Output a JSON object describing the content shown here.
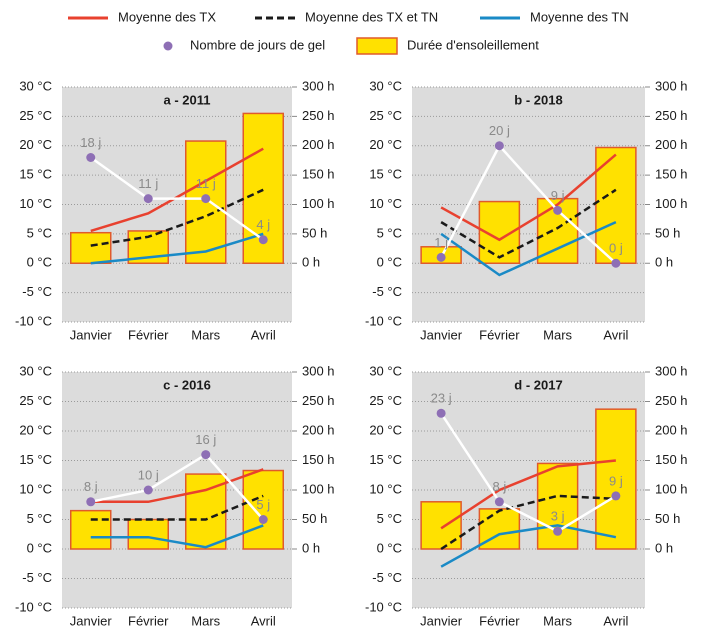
{
  "chart_data": [
    {
      "type": "combo",
      "title": "a - 2011",
      "categories": [
        "Janvier",
        "Février",
        "Mars",
        "Avril"
      ],
      "ylim": [
        -10,
        30
      ],
      "yticks": [
        {
          "value": -10,
          "label": "-10 °C"
        },
        {
          "value": -5,
          "label": "-5 °C"
        },
        {
          "value": 0,
          "label": "0 °C"
        },
        {
          "value": 5,
          "label": "5 °C"
        },
        {
          "value": 10,
          "label": "10 °C"
        },
        {
          "value": 15,
          "label": "15 °C"
        },
        {
          "value": 20,
          "label": "20 °C"
        },
        {
          "value": 25,
          "label": "25 °C"
        },
        {
          "value": 30,
          "label": "30 °C"
        }
      ],
      "y2lim": [
        -100,
        300
      ],
      "y2ticks": [
        {
          "value": 0,
          "label": "0 h"
        },
        {
          "value": 50,
          "label": "50 h"
        },
        {
          "value": 100,
          "label": "100 h"
        },
        {
          "value": 150,
          "label": "150 h"
        },
        {
          "value": 200,
          "label": "200 h"
        },
        {
          "value": 250,
          "label": "250 h"
        },
        {
          "value": 300,
          "label": "300 h"
        }
      ],
      "grid": true,
      "series": [
        {
          "name": "Moyenne des TX",
          "style": "line",
          "color": "#e8412f",
          "values": [
            5.5,
            8.5,
            14,
            19.5
          ]
        },
        {
          "name": "Moyenne des TX et TN",
          "style": "dashed",
          "color": "#1a1a1a",
          "values": [
            3,
            4.5,
            8,
            12.5
          ]
        },
        {
          "name": "Moyenne des TN",
          "style": "line",
          "color": "#1a8ac6",
          "values": [
            0,
            1,
            2,
            5
          ]
        },
        {
          "name": "Nombre de jours de gel",
          "style": "dots",
          "color": "#8e6fb5",
          "values": [
            18,
            11,
            11,
            4
          ],
          "value_labels": [
            "18 j",
            "11 j",
            "11 j",
            "4 j"
          ]
        },
        {
          "name": "Durée d'ensoleillement",
          "style": "bar",
          "color": "#ffe100",
          "axis": "y2",
          "values": [
            52,
            55,
            208,
            255
          ]
        }
      ]
    },
    {
      "type": "combo",
      "title": "b - 2018",
      "categories": [
        "Janvier",
        "Février",
        "Mars",
        "Avril"
      ],
      "ylim": [
        -10,
        30
      ],
      "yticks": [
        {
          "value": -10,
          "label": "-10 °C"
        },
        {
          "value": -5,
          "label": "-5 °C"
        },
        {
          "value": 0,
          "label": "0 °C"
        },
        {
          "value": 5,
          "label": "5 °C"
        },
        {
          "value": 10,
          "label": "10 °C"
        },
        {
          "value": 15,
          "label": "15 °C"
        },
        {
          "value": 20,
          "label": "20 °C"
        },
        {
          "value": 25,
          "label": "25 °C"
        },
        {
          "value": 30,
          "label": "30 °C"
        }
      ],
      "y2lim": [
        -100,
        300
      ],
      "y2ticks": [
        {
          "value": 0,
          "label": "0 h"
        },
        {
          "value": 50,
          "label": "50 h"
        },
        {
          "value": 100,
          "label": "100 h"
        },
        {
          "value": 150,
          "label": "150 h"
        },
        {
          "value": 200,
          "label": "200 h"
        },
        {
          "value": 250,
          "label": "250 h"
        },
        {
          "value": 300,
          "label": "300 h"
        }
      ],
      "grid": true,
      "series": [
        {
          "name": "Moyenne des TX",
          "style": "line",
          "color": "#e8412f",
          "values": [
            9.5,
            4,
            10,
            18.5
          ]
        },
        {
          "name": "Moyenne des TX et TN",
          "style": "dashed",
          "color": "#1a1a1a",
          "values": [
            7,
            1,
            6,
            12.5
          ]
        },
        {
          "name": "Moyenne des TN",
          "style": "line",
          "color": "#1a8ac6",
          "values": [
            5,
            -2,
            2.5,
            7
          ]
        },
        {
          "name": "Nombre de jours de gel",
          "style": "dots",
          "color": "#8e6fb5",
          "values": [
            1,
            20,
            9,
            0
          ],
          "value_labels": [
            "1 j",
            "20 j",
            "9 j",
            "0 j"
          ]
        },
        {
          "name": "Durée d'ensoleillement",
          "style": "bar",
          "color": "#ffe100",
          "axis": "y2",
          "values": [
            28,
            105,
            110,
            197
          ]
        }
      ]
    },
    {
      "type": "combo",
      "title": "c - 2016",
      "categories": [
        "Janvier",
        "Février",
        "Mars",
        "Avril"
      ],
      "ylim": [
        -10,
        30
      ],
      "yticks": [
        {
          "value": -10,
          "label": "-10 °C"
        },
        {
          "value": -5,
          "label": "-5 °C"
        },
        {
          "value": 0,
          "label": "0 °C"
        },
        {
          "value": 5,
          "label": "5 °C"
        },
        {
          "value": 10,
          "label": "10 °C"
        },
        {
          "value": 15,
          "label": "15 °C"
        },
        {
          "value": 20,
          "label": "20 °C"
        },
        {
          "value": 25,
          "label": "25 °C"
        },
        {
          "value": 30,
          "label": "30 °C"
        }
      ],
      "y2lim": [
        -100,
        300
      ],
      "y2ticks": [
        {
          "value": 0,
          "label": "0 h"
        },
        {
          "value": 50,
          "label": "50 h"
        },
        {
          "value": 100,
          "label": "100 h"
        },
        {
          "value": 150,
          "label": "150 h"
        },
        {
          "value": 200,
          "label": "200 h"
        },
        {
          "value": 250,
          "label": "250 h"
        },
        {
          "value": 300,
          "label": "300 h"
        }
      ],
      "grid": true,
      "series": [
        {
          "name": "Moyenne des TX",
          "style": "line",
          "color": "#e8412f",
          "values": [
            8,
            8,
            10,
            13.5
          ]
        },
        {
          "name": "Moyenne des TX et TN",
          "style": "dashed",
          "color": "#1a1a1a",
          "values": [
            5,
            5,
            5,
            9
          ]
        },
        {
          "name": "Moyenne des TN",
          "style": "line",
          "color": "#1a8ac6",
          "values": [
            2,
            2,
            0.3,
            4
          ]
        },
        {
          "name": "Nombre de jours de gel",
          "style": "dots",
          "color": "#8e6fb5",
          "values": [
            8,
            10,
            16,
            5
          ],
          "value_labels": [
            "8 j",
            "10 j",
            "16 j",
            "5 j"
          ]
        },
        {
          "name": "Durée d'ensoleillement",
          "style": "bar",
          "color": "#ffe100",
          "axis": "y2",
          "values": [
            65,
            50,
            127,
            133
          ]
        }
      ]
    },
    {
      "type": "combo",
      "title": "d - 2017",
      "categories": [
        "Janvier",
        "Février",
        "Mars",
        "Avril"
      ],
      "ylim": [
        -10,
        30
      ],
      "yticks": [
        {
          "value": -10,
          "label": "-10 °C"
        },
        {
          "value": -5,
          "label": "-5 °C"
        },
        {
          "value": 0,
          "label": "0 °C"
        },
        {
          "value": 5,
          "label": "5 °C"
        },
        {
          "value": 10,
          "label": "10 °C"
        },
        {
          "value": 15,
          "label": "15 °C"
        },
        {
          "value": 20,
          "label": "20 °C"
        },
        {
          "value": 25,
          "label": "25 °C"
        },
        {
          "value": 30,
          "label": "30 °C"
        }
      ],
      "y2lim": [
        -100,
        300
      ],
      "y2ticks": [
        {
          "value": 0,
          "label": "0 h"
        },
        {
          "value": 50,
          "label": "50 h"
        },
        {
          "value": 100,
          "label": "100 h"
        },
        {
          "value": 150,
          "label": "150 h"
        },
        {
          "value": 200,
          "label": "200 h"
        },
        {
          "value": 250,
          "label": "250 h"
        },
        {
          "value": 300,
          "label": "300 h"
        }
      ],
      "grid": true,
      "series": [
        {
          "name": "Moyenne des TX",
          "style": "line",
          "color": "#e8412f",
          "values": [
            3.5,
            10,
            14,
            15
          ]
        },
        {
          "name": "Moyenne des TX et TN",
          "style": "dashed",
          "color": "#1a1a1a",
          "values": [
            0,
            6.5,
            9,
            8.5
          ]
        },
        {
          "name": "Moyenne des TN",
          "style": "line",
          "color": "#1a8ac6",
          "values": [
            -3,
            2.5,
            4,
            2
          ]
        },
        {
          "name": "Nombre de jours de gel",
          "style": "dots",
          "color": "#8e6fb5",
          "values": [
            23,
            8,
            3,
            9
          ],
          "value_labels": [
            "23 j",
            "8 j",
            "3 j",
            "9 j"
          ]
        },
        {
          "name": "Durée d'ensoleillement",
          "style": "bar",
          "color": "#ffe100",
          "axis": "y2",
          "values": [
            80,
            68,
            145,
            237
          ]
        }
      ]
    }
  ]
}
